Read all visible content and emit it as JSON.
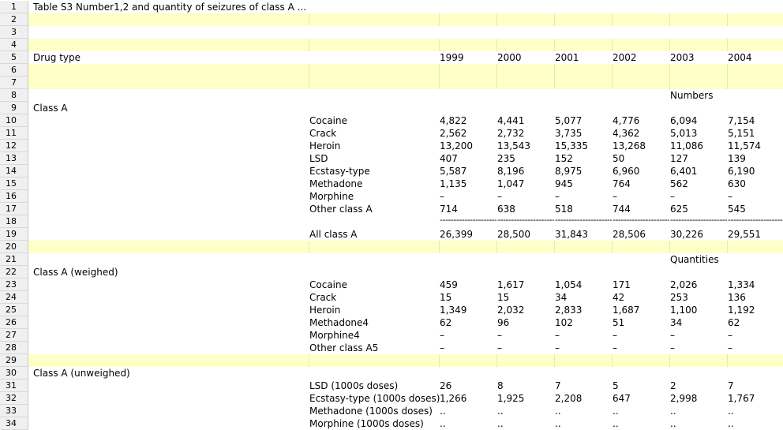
{
  "title": "Table S3  Number1,2 and quantity of seizures of class A ...",
  "header": {
    "label": "Drug type",
    "years": [
      "1999",
      "2000",
      "2001",
      "2002",
      "2003",
      "2004"
    ]
  },
  "numbers_label": "Numbers",
  "quantities_label": "Quantities",
  "sections": {
    "class_a": "Class A",
    "class_a_weighed": "Class A (weighed)",
    "class_a_unweighed": "Class A (unweighed)"
  },
  "numbers_rows": [
    {
      "drug": "Cocaine",
      "values": [
        "4,822",
        "4,441",
        "5,077",
        "4,776",
        "6,094",
        "7,154"
      ]
    },
    {
      "drug": "Crack",
      "values": [
        "2,562",
        "2,732",
        "3,735",
        "4,362",
        "5,013",
        "5,151"
      ]
    },
    {
      "drug": "Heroin",
      "values": [
        "13,200",
        "13,543",
        "15,335",
        "13,268",
        "11,086",
        "11,574"
      ]
    },
    {
      "drug": "LSD",
      "values": [
        "407",
        "235",
        "152",
        "50",
        "127",
        "139"
      ]
    },
    {
      "drug": "Ecstasy-type",
      "values": [
        "5,587",
        "8,196",
        "8,975",
        "6,960",
        "6,401",
        "6,190"
      ]
    },
    {
      "drug": "Methadone",
      "values": [
        "1,135",
        "1,047",
        "945",
        "764",
        "562",
        "630"
      ]
    },
    {
      "drug": "Morphine",
      "values": [
        "–",
        "–",
        "–",
        "–",
        "–",
        "–"
      ]
    },
    {
      "drug": "Other class A",
      "values": [
        "714",
        "638",
        "518",
        "744",
        "625",
        "545"
      ]
    }
  ],
  "dash_line": "----------------------------",
  "total_row": {
    "drug": "All class A",
    "values": [
      "26,399",
      "28,500",
      "31,843",
      "28,506",
      "30,226",
      "29,551"
    ]
  },
  "weighed_rows": [
    {
      "drug": "Cocaine",
      "values": [
        "459",
        "1,617",
        "1,054",
        "171",
        "2,026",
        "1,334"
      ]
    },
    {
      "drug": "Crack",
      "values": [
        "15",
        "15",
        "34",
        "42",
        "253",
        "136"
      ]
    },
    {
      "drug": "Heroin",
      "values": [
        "1,349",
        "2,032",
        "2,833",
        "1,687",
        "1,100",
        "1,192"
      ]
    },
    {
      "drug": "Methadone4",
      "values": [
        "62",
        "96",
        "102",
        "51",
        "34",
        "62"
      ]
    },
    {
      "drug": "Morphine4",
      "values": [
        "–",
        "–",
        "–",
        "–",
        "–",
        "–"
      ]
    },
    {
      "drug": "Other class A5",
      "values": [
        "–",
        "–",
        "–",
        "–",
        "–",
        "–"
      ]
    }
  ],
  "unweighed_rows": [
    {
      "drug": "LSD (1000s doses)",
      "values": [
        "26",
        "8",
        "7",
        "5",
        "2",
        "7"
      ]
    },
    {
      "drug": "Ecstasy-type (1000s doses)",
      "values": [
        "1,266",
        "1,925",
        "2,208",
        "647",
        "2,998",
        "1,767"
      ]
    },
    {
      "drug": "Methadone (1000s doses)",
      "values": [
        "..",
        "..",
        "..",
        "..",
        "..",
        ".."
      ]
    },
    {
      "drug": "Morphine (1000s doses)",
      "values": [
        "..",
        "..",
        "..",
        "..",
        "..",
        ".."
      ]
    }
  ]
}
